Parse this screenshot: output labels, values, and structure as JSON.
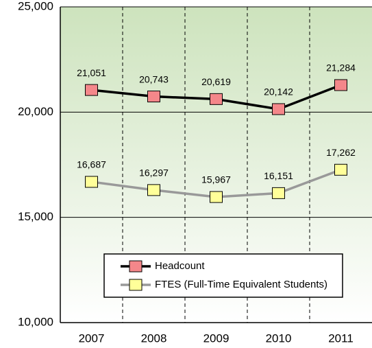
{
  "chart_data": {
    "type": "line",
    "categories": [
      "2007",
      "2008",
      "2009",
      "2010",
      "2011"
    ],
    "series": [
      {
        "name": "Headcount",
        "color": "#000000",
        "marker_color": "#f4878a",
        "values": [
          21051,
          20743,
          20619,
          20142,
          21284
        ],
        "value_labels": [
          "21,051",
          "20,743",
          "20,619",
          "20,142",
          "21,284"
        ]
      },
      {
        "name": "FTES (Full-Time Equivalent Students)",
        "color": "#999999",
        "marker_color": "#ffff99",
        "values": [
          16687,
          16297,
          15967,
          16151,
          17262
        ],
        "value_labels": [
          "16,687",
          "16,297",
          "15,967",
          "16,151",
          "17,262"
        ]
      }
    ],
    "ylim": [
      10000,
      25000
    ],
    "yticks": [
      {
        "value": 10000,
        "label": "10,000"
      },
      {
        "value": 15000,
        "label": "15,000"
      },
      {
        "value": 20000,
        "label": "20,000"
      },
      {
        "value": 25000,
        "label": "25,000"
      }
    ],
    "grid": true
  }
}
